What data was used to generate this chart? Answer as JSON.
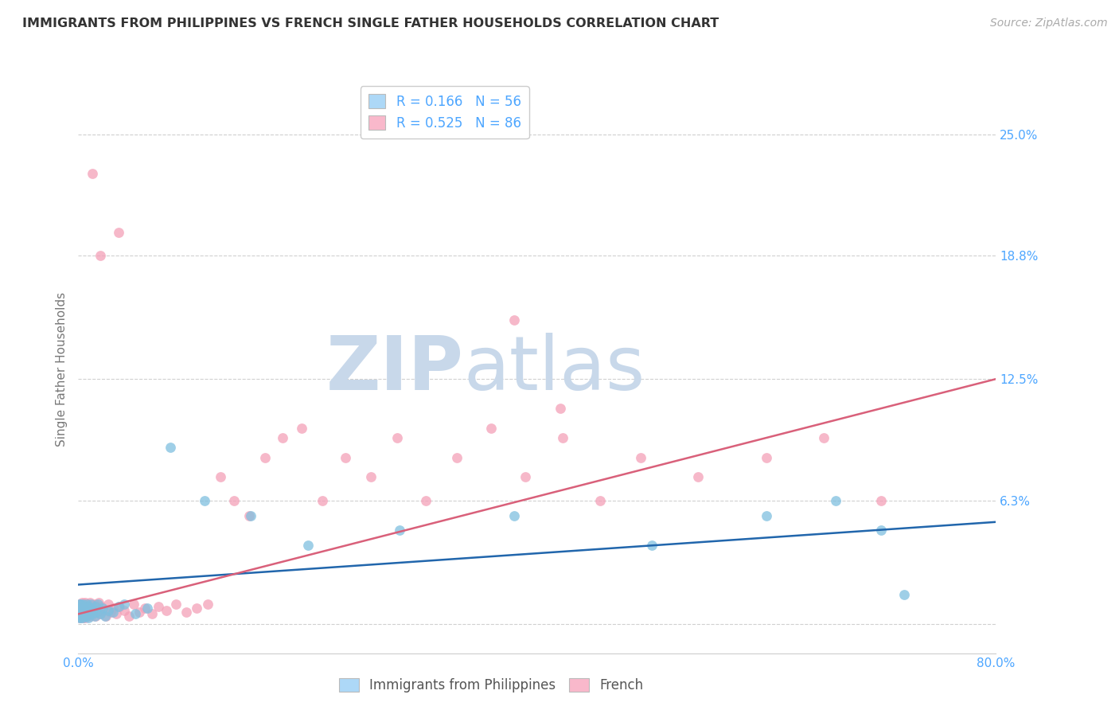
{
  "title": "IMMIGRANTS FROM PHILIPPINES VS FRENCH SINGLE FATHER HOUSEHOLDS CORRELATION CHART",
  "source": "Source: ZipAtlas.com",
  "ylabel": "Single Father Households",
  "xlim": [
    0.0,
    0.8
  ],
  "ylim": [
    -0.015,
    0.275
  ],
  "yticks": [
    0.0,
    0.063,
    0.125,
    0.188,
    0.25
  ],
  "ytick_labels": [
    "",
    "6.3%",
    "12.5%",
    "18.8%",
    "25.0%"
  ],
  "xticks": [
    0.0,
    0.2,
    0.4,
    0.6,
    0.8
  ],
  "xtick_labels": [
    "0.0%",
    "",
    "",
    "",
    "80.0%"
  ],
  "blue_R": 0.166,
  "blue_N": 56,
  "pink_R": 0.525,
  "pink_N": 86,
  "blue_color": "#7fbfdf",
  "pink_color": "#f4a0b8",
  "blue_line_color": "#2166ac",
  "pink_line_color": "#d9607a",
  "title_color": "#333333",
  "axis_label_color": "#777777",
  "tick_color": "#4da6ff",
  "grid_color": "#d0d0d0",
  "background_color": "#ffffff",
  "legend_blue_fill": "#add8f7",
  "legend_pink_fill": "#f9b8cb",
  "blue_line_x0": 0.0,
  "blue_line_x1": 0.8,
  "blue_line_y0": 0.02,
  "blue_line_y1": 0.052,
  "pink_line_x0": 0.0,
  "pink_line_x1": 0.8,
  "pink_line_y0": 0.005,
  "pink_line_y1": 0.125,
  "blue_scatter_x": [
    0.001,
    0.001,
    0.001,
    0.002,
    0.002,
    0.002,
    0.002,
    0.002,
    0.003,
    0.003,
    0.003,
    0.003,
    0.004,
    0.004,
    0.004,
    0.005,
    0.005,
    0.005,
    0.006,
    0.006,
    0.006,
    0.007,
    0.007,
    0.008,
    0.008,
    0.009,
    0.009,
    0.01,
    0.01,
    0.011,
    0.012,
    0.013,
    0.014,
    0.015,
    0.016,
    0.017,
    0.019,
    0.021,
    0.023,
    0.026,
    0.03,
    0.035,
    0.04,
    0.05,
    0.06,
    0.08,
    0.11,
    0.15,
    0.2,
    0.28,
    0.38,
    0.5,
    0.6,
    0.66,
    0.7,
    0.72
  ],
  "blue_scatter_y": [
    0.01,
    0.005,
    0.003,
    0.008,
    0.004,
    0.006,
    0.01,
    0.003,
    0.007,
    0.005,
    0.009,
    0.004,
    0.006,
    0.01,
    0.003,
    0.008,
    0.005,
    0.007,
    0.004,
    0.009,
    0.006,
    0.01,
    0.004,
    0.007,
    0.005,
    0.009,
    0.003,
    0.008,
    0.006,
    0.01,
    0.005,
    0.007,
    0.004,
    0.009,
    0.006,
    0.01,
    0.005,
    0.008,
    0.004,
    0.007,
    0.006,
    0.009,
    0.01,
    0.005,
    0.008,
    0.09,
    0.063,
    0.055,
    0.04,
    0.048,
    0.055,
    0.04,
    0.055,
    0.063,
    0.048,
    0.015
  ],
  "pink_scatter_x": [
    0.001,
    0.001,
    0.001,
    0.002,
    0.002,
    0.002,
    0.002,
    0.003,
    0.003,
    0.003,
    0.003,
    0.004,
    0.004,
    0.004,
    0.005,
    0.005,
    0.005,
    0.005,
    0.006,
    0.006,
    0.006,
    0.007,
    0.007,
    0.007,
    0.008,
    0.008,
    0.009,
    0.009,
    0.01,
    0.01,
    0.011,
    0.011,
    0.012,
    0.013,
    0.014,
    0.015,
    0.016,
    0.017,
    0.018,
    0.019,
    0.02,
    0.022,
    0.024,
    0.026,
    0.028,
    0.03,
    0.033,
    0.036,
    0.04,
    0.044,
    0.048,
    0.053,
    0.058,
    0.064,
    0.07,
    0.077,
    0.085,
    0.094,
    0.103,
    0.113,
    0.124,
    0.136,
    0.149,
    0.163,
    0.178,
    0.195,
    0.213,
    0.233,
    0.255,
    0.278,
    0.303,
    0.33,
    0.36,
    0.39,
    0.422,
    0.455,
    0.49,
    0.38,
    0.54,
    0.6,
    0.65,
    0.7,
    0.035,
    0.42,
    0.012,
    0.019
  ],
  "pink_scatter_y": [
    0.005,
    0.009,
    0.003,
    0.007,
    0.004,
    0.01,
    0.006,
    0.008,
    0.004,
    0.011,
    0.006,
    0.009,
    0.003,
    0.007,
    0.005,
    0.01,
    0.004,
    0.008,
    0.006,
    0.011,
    0.003,
    0.009,
    0.005,
    0.007,
    0.004,
    0.01,
    0.006,
    0.008,
    0.005,
    0.011,
    0.004,
    0.009,
    0.007,
    0.005,
    0.01,
    0.004,
    0.008,
    0.006,
    0.011,
    0.005,
    0.009,
    0.007,
    0.004,
    0.01,
    0.006,
    0.008,
    0.005,
    0.009,
    0.007,
    0.004,
    0.01,
    0.006,
    0.008,
    0.005,
    0.009,
    0.007,
    0.01,
    0.006,
    0.008,
    0.01,
    0.075,
    0.063,
    0.055,
    0.085,
    0.095,
    0.1,
    0.063,
    0.085,
    0.075,
    0.095,
    0.063,
    0.085,
    0.1,
    0.075,
    0.095,
    0.063,
    0.085,
    0.155,
    0.075,
    0.085,
    0.095,
    0.063,
    0.2,
    0.11,
    0.23,
    0.188
  ]
}
